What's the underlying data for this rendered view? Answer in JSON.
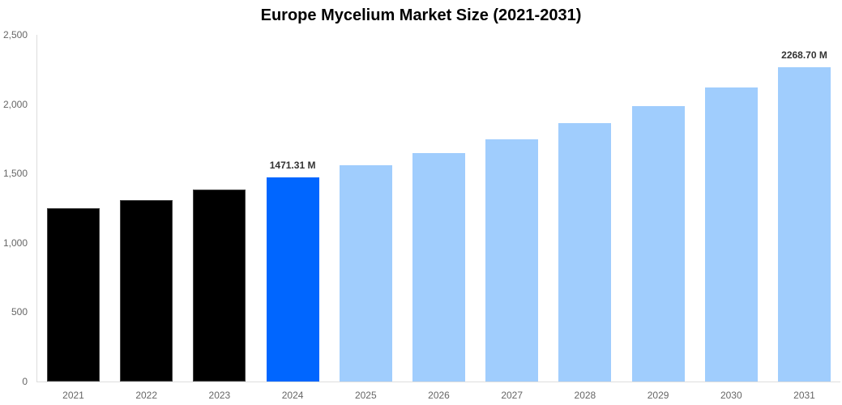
{
  "chart_data": {
    "type": "bar",
    "title": "Europe Mycelium Market Size (2021-2031)",
    "xlabel": "",
    "ylabel": "",
    "ylim": [
      0,
      2500
    ],
    "yticks": [
      "0",
      "500",
      "1,000",
      "1,500",
      "2,000",
      "2,500"
    ],
    "ytick_values": [
      0,
      500,
      1000,
      1500,
      2000,
      2500
    ],
    "grid": false,
    "legend": null,
    "categories": [
      "2021",
      "2022",
      "2023",
      "2024",
      "2025",
      "2026",
      "2027",
      "2028",
      "2029",
      "2030",
      "2031"
    ],
    "values": [
      1250,
      1308,
      1384,
      1471.31,
      1560,
      1647,
      1747,
      1863,
      1986,
      2120,
      2268.7
    ],
    "colors": [
      "#000000",
      "#000000",
      "#000000",
      "#0066ff",
      "#a0cdfd",
      "#a0cdfd",
      "#a0cdfd",
      "#a0cdfd",
      "#a0cdfd",
      "#a0cdfd",
      "#a0cdfd"
    ],
    "annotations": [
      {
        "category": "2024",
        "text": "1471.31 M"
      },
      {
        "category": "2031",
        "text": "2268.70 M"
      }
    ]
  },
  "colors": {
    "historical": "#000000",
    "base_year": "#0066ff",
    "forecast": "#a0cdfd",
    "axis_text": "#666666",
    "label_text": "#333333"
  }
}
